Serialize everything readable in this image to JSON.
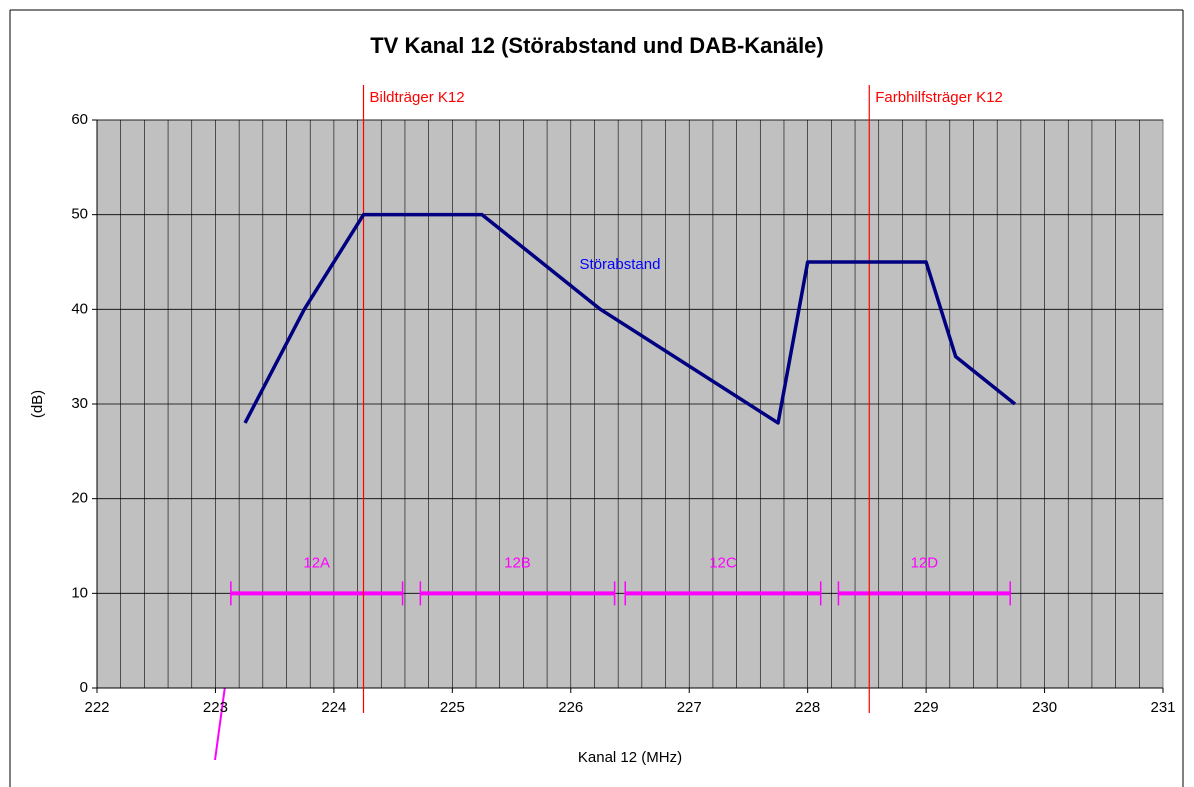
{
  "chart_data": {
    "type": "line",
    "title": "TV Kanal 12 (Störabstand und DAB-Kanäle)",
    "xlabel": "Kanal 12 (MHz)",
    "ylabel": "(dB)",
    "xlim": [
      222,
      231
    ],
    "ylim": [
      0,
      60
    ],
    "xticks": [
      222,
      223,
      224,
      225,
      226,
      227,
      228,
      229,
      230,
      231
    ],
    "yticks": [
      0,
      10,
      20,
      30,
      40,
      50,
      60
    ],
    "xgrid_step": 0.2,
    "grid": true,
    "series": [
      {
        "name": "Störabstand",
        "color": "#000080",
        "x": [
          223.25,
          223.75,
          224.25,
          225.25,
          226.25,
          227.75,
          228,
          229,
          229.25,
          229.75
        ],
        "values": [
          28,
          40,
          50,
          50,
          40,
          28,
          45,
          45,
          35,
          30
        ]
      }
    ],
    "markers": [
      {
        "label": "Bildträger K12",
        "x": 224.25,
        "color": "#ff0000"
      },
      {
        "label": "Farbhilfsträger K12",
        "x": 228.52,
        "color": "#ff0000"
      }
    ],
    "dab_channels": {
      "color": "#ff00ff",
      "level": 10,
      "items": [
        {
          "name": "12A",
          "start": 223.13,
          "end": 224.58
        },
        {
          "name": "12B",
          "start": 224.73,
          "end": 226.37
        },
        {
          "name": "12C",
          "start": 226.46,
          "end": 228.11
        },
        {
          "name": "12D",
          "start": 228.26,
          "end": 229.71
        }
      ]
    }
  }
}
